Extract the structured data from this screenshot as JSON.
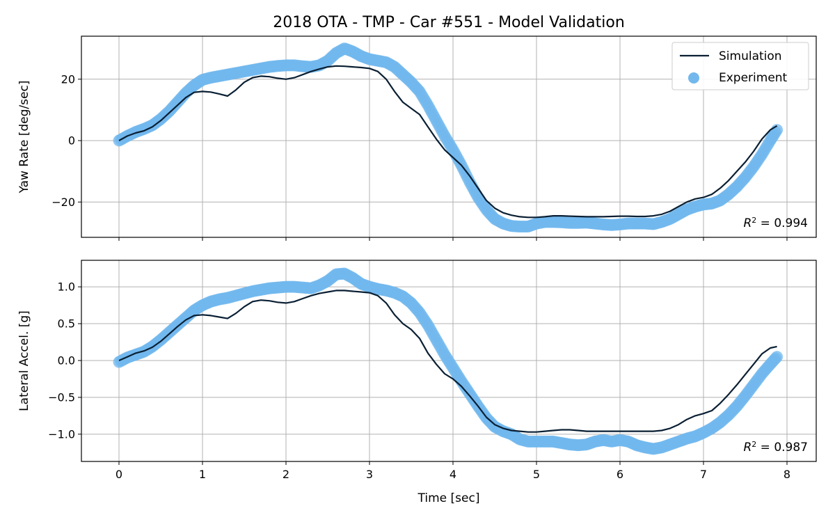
{
  "chart_data": [
    {
      "type": "line",
      "title": "2018 OTA - TMP - Car #551 - Model Validation",
      "xlabel": "",
      "ylabel": "Yaw Rate [deg/sec]",
      "xlim": [
        -0.45,
        8.35
      ],
      "ylim": [
        -31.5,
        34
      ],
      "xticks": [
        0,
        1,
        2,
        3,
        4,
        5,
        6,
        7,
        8
      ],
      "xtick_labels": [
        "",
        "",
        "",
        "",
        "",
        "",
        "",
        "",
        ""
      ],
      "yticks": [
        -20,
        0,
        20
      ],
      "ytick_labels": [
        "−20",
        "0",
        "20"
      ],
      "grid": true,
      "legend_position": "top-right",
      "annotation": "0.994",
      "series": [
        {
          "name": "Simulation",
          "kind": "line",
          "color": "#0a1f33",
          "x": [
            0,
            0.1,
            0.2,
            0.3,
            0.4,
            0.5,
            0.6,
            0.7,
            0.8,
            0.9,
            1.0,
            1.1,
            1.2,
            1.3,
            1.4,
            1.5,
            1.6,
            1.7,
            1.8,
            1.9,
            2.0,
            2.1,
            2.2,
            2.3,
            2.4,
            2.5,
            2.6,
            2.7,
            2.8,
            2.9,
            3.0,
            3.1,
            3.2,
            3.3,
            3.4,
            3.5,
            3.6,
            3.7,
            3.8,
            3.9,
            4.0,
            4.1,
            4.2,
            4.3,
            4.4,
            4.5,
            4.6,
            4.7,
            4.8,
            4.9,
            5.0,
            5.1,
            5.2,
            5.3,
            5.4,
            5.5,
            5.6,
            5.7,
            5.8,
            5.9,
            6.0,
            6.1,
            6.2,
            6.3,
            6.4,
            6.5,
            6.6,
            6.7,
            6.8,
            6.9,
            7.0,
            7.1,
            7.2,
            7.3,
            7.4,
            7.5,
            7.6,
            7.7,
            7.8,
            7.88
          ],
          "y": [
            0,
            1.5,
            2.5,
            3.2,
            4.5,
            6.5,
            9.0,
            11.5,
            14.0,
            15.7,
            16.0,
            15.8,
            15.2,
            14.5,
            16.5,
            19.0,
            20.5,
            21.0,
            20.8,
            20.3,
            20.0,
            20.5,
            21.5,
            22.5,
            23.3,
            24.0,
            24.3,
            24.2,
            24.0,
            23.8,
            23.5,
            22.5,
            20.0,
            16.0,
            12.5,
            10.5,
            8.5,
            4.5,
            0.5,
            -3.0,
            -5.5,
            -8.0,
            -11.5,
            -15.5,
            -19.5,
            -22.0,
            -23.5,
            -24.3,
            -24.8,
            -25.0,
            -25.0,
            -24.8,
            -24.5,
            -24.5,
            -24.6,
            -24.7,
            -24.8,
            -24.8,
            -24.8,
            -24.7,
            -24.6,
            -24.6,
            -24.7,
            -24.7,
            -24.5,
            -24.0,
            -23.0,
            -21.5,
            -20.0,
            -19.0,
            -18.5,
            -17.5,
            -15.5,
            -13.0,
            -10.0,
            -7.0,
            -3.5,
            0.5,
            3.5,
            4.8
          ]
        },
        {
          "name": "Experiment",
          "kind": "scatter",
          "color": "#72b8ed",
          "x": [
            0,
            0.1,
            0.2,
            0.3,
            0.4,
            0.5,
            0.6,
            0.7,
            0.8,
            0.9,
            1.0,
            1.1,
            1.2,
            1.3,
            1.4,
            1.5,
            1.6,
            1.7,
            1.8,
            1.9,
            2.0,
            2.1,
            2.2,
            2.3,
            2.4,
            2.5,
            2.6,
            2.7,
            2.8,
            2.9,
            3.0,
            3.1,
            3.2,
            3.3,
            3.4,
            3.5,
            3.6,
            3.7,
            3.8,
            3.9,
            4.0,
            4.1,
            4.2,
            4.3,
            4.4,
            4.5,
            4.6,
            4.7,
            4.8,
            4.9,
            5.0,
            5.1,
            5.2,
            5.3,
            5.4,
            5.5,
            5.6,
            5.7,
            5.8,
            5.9,
            6.0,
            6.1,
            6.2,
            6.3,
            6.4,
            6.5,
            6.6,
            6.7,
            6.8,
            6.9,
            7.0,
            7.1,
            7.2,
            7.3,
            7.4,
            7.5,
            7.6,
            7.7,
            7.8,
            7.88
          ],
          "y": [
            0,
            1.5,
            2.8,
            3.8,
            5.0,
            7.0,
            9.5,
            12.5,
            15.5,
            18.0,
            19.8,
            20.5,
            21.0,
            21.5,
            22.0,
            22.5,
            23.0,
            23.5,
            24.0,
            24.3,
            24.5,
            24.5,
            24.2,
            24.0,
            24.5,
            26.0,
            28.5,
            30.0,
            29.0,
            27.5,
            26.5,
            26.0,
            25.5,
            24.0,
            21.5,
            19.0,
            16.0,
            11.5,
            6.5,
            1.5,
            -3.0,
            -8.0,
            -13.5,
            -18.5,
            -22.5,
            -25.5,
            -27.0,
            -27.8,
            -28.0,
            -28.0,
            -27.0,
            -26.5,
            -26.5,
            -26.6,
            -26.8,
            -26.8,
            -26.7,
            -27.0,
            -27.3,
            -27.5,
            -27.3,
            -27.0,
            -27.0,
            -27.0,
            -27.2,
            -26.5,
            -25.5,
            -24.0,
            -22.5,
            -21.5,
            -20.8,
            -20.5,
            -19.5,
            -17.5,
            -15.0,
            -12.0,
            -8.5,
            -4.5,
            0,
            3.5
          ]
        }
      ]
    },
    {
      "type": "line",
      "title": "",
      "xlabel": "Time [sec]",
      "ylabel": "Lateral Accel. [g]",
      "xlim": [
        -0.45,
        8.35
      ],
      "ylim": [
        -1.37,
        1.36
      ],
      "xticks": [
        0,
        1,
        2,
        3,
        4,
        5,
        6,
        7,
        8
      ],
      "xtick_labels": [
        "0",
        "1",
        "2",
        "3",
        "4",
        "5",
        "6",
        "7",
        "8"
      ],
      "yticks": [
        -1.0,
        -0.5,
        0.0,
        0.5,
        1.0
      ],
      "ytick_labels": [
        "−1.0",
        "−0.5",
        "0.0",
        "0.5",
        "1.0"
      ],
      "grid": true,
      "annotation": "0.987",
      "series": [
        {
          "name": "Simulation",
          "kind": "line",
          "color": "#0a1f33",
          "x": [
            0,
            0.1,
            0.2,
            0.3,
            0.4,
            0.5,
            0.6,
            0.7,
            0.8,
            0.9,
            1.0,
            1.1,
            1.2,
            1.3,
            1.4,
            1.5,
            1.6,
            1.7,
            1.8,
            1.9,
            2.0,
            2.1,
            2.2,
            2.3,
            2.4,
            2.5,
            2.6,
            2.7,
            2.8,
            2.9,
            3.0,
            3.1,
            3.2,
            3.3,
            3.4,
            3.5,
            3.6,
            3.7,
            3.8,
            3.9,
            4.0,
            4.1,
            4.2,
            4.3,
            4.4,
            4.5,
            4.6,
            4.7,
            4.8,
            4.9,
            5.0,
            5.1,
            5.2,
            5.3,
            5.4,
            5.5,
            5.6,
            5.7,
            5.8,
            5.9,
            6.0,
            6.1,
            6.2,
            6.3,
            6.4,
            6.5,
            6.6,
            6.7,
            6.8,
            6.9,
            7.0,
            7.1,
            7.2,
            7.3,
            7.4,
            7.5,
            7.6,
            7.7,
            7.8,
            7.88
          ],
          "y": [
            0,
            0.05,
            0.1,
            0.13,
            0.18,
            0.26,
            0.36,
            0.46,
            0.55,
            0.61,
            0.62,
            0.61,
            0.59,
            0.57,
            0.64,
            0.73,
            0.8,
            0.82,
            0.81,
            0.79,
            0.78,
            0.8,
            0.84,
            0.88,
            0.91,
            0.93,
            0.95,
            0.95,
            0.94,
            0.93,
            0.92,
            0.88,
            0.78,
            0.62,
            0.5,
            0.42,
            0.3,
            0.1,
            -0.05,
            -0.18,
            -0.25,
            -0.35,
            -0.48,
            -0.62,
            -0.77,
            -0.87,
            -0.92,
            -0.95,
            -0.96,
            -0.97,
            -0.97,
            -0.96,
            -0.95,
            -0.94,
            -0.94,
            -0.95,
            -0.96,
            -0.96,
            -0.96,
            -0.96,
            -0.96,
            -0.96,
            -0.96,
            -0.96,
            -0.96,
            -0.95,
            -0.92,
            -0.87,
            -0.8,
            -0.75,
            -0.72,
            -0.68,
            -0.58,
            -0.46,
            -0.33,
            -0.19,
            -0.05,
            0.09,
            0.17,
            0.19
          ]
        },
        {
          "name": "Experiment",
          "kind": "scatter",
          "color": "#72b8ed",
          "x": [
            0,
            0.1,
            0.2,
            0.3,
            0.4,
            0.5,
            0.6,
            0.7,
            0.8,
            0.9,
            1.0,
            1.1,
            1.2,
            1.3,
            1.4,
            1.5,
            1.6,
            1.7,
            1.8,
            1.9,
            2.0,
            2.1,
            2.2,
            2.3,
            2.4,
            2.5,
            2.6,
            2.7,
            2.8,
            2.9,
            3.0,
            3.1,
            3.2,
            3.3,
            3.4,
            3.5,
            3.6,
            3.7,
            3.8,
            3.9,
            4.0,
            4.1,
            4.2,
            4.3,
            4.4,
            4.5,
            4.6,
            4.7,
            4.8,
            4.9,
            5.0,
            5.1,
            5.2,
            5.3,
            5.4,
            5.5,
            5.6,
            5.7,
            5.8,
            5.9,
            6.0,
            6.1,
            6.2,
            6.3,
            6.4,
            6.5,
            6.6,
            6.7,
            6.8,
            6.9,
            7.0,
            7.1,
            7.2,
            7.3,
            7.4,
            7.5,
            7.6,
            7.7,
            7.8,
            7.88
          ],
          "y": [
            -0.02,
            0.04,
            0.08,
            0.12,
            0.19,
            0.28,
            0.38,
            0.48,
            0.58,
            0.68,
            0.75,
            0.8,
            0.83,
            0.85,
            0.88,
            0.91,
            0.94,
            0.96,
            0.98,
            0.99,
            1.0,
            1.0,
            0.99,
            0.98,
            1.02,
            1.08,
            1.17,
            1.18,
            1.12,
            1.04,
            1.0,
            0.97,
            0.95,
            0.92,
            0.87,
            0.78,
            0.65,
            0.48,
            0.28,
            0.08,
            -0.1,
            -0.28,
            -0.45,
            -0.62,
            -0.78,
            -0.9,
            -0.96,
            -1.0,
            -1.07,
            -1.1,
            -1.1,
            -1.1,
            -1.1,
            -1.12,
            -1.14,
            -1.15,
            -1.14,
            -1.1,
            -1.08,
            -1.1,
            -1.08,
            -1.1,
            -1.15,
            -1.18,
            -1.2,
            -1.18,
            -1.14,
            -1.1,
            -1.06,
            -1.03,
            -0.98,
            -0.92,
            -0.84,
            -0.74,
            -0.62,
            -0.48,
            -0.33,
            -0.18,
            -0.05,
            0.05
          ]
        }
      ]
    }
  ]
}
